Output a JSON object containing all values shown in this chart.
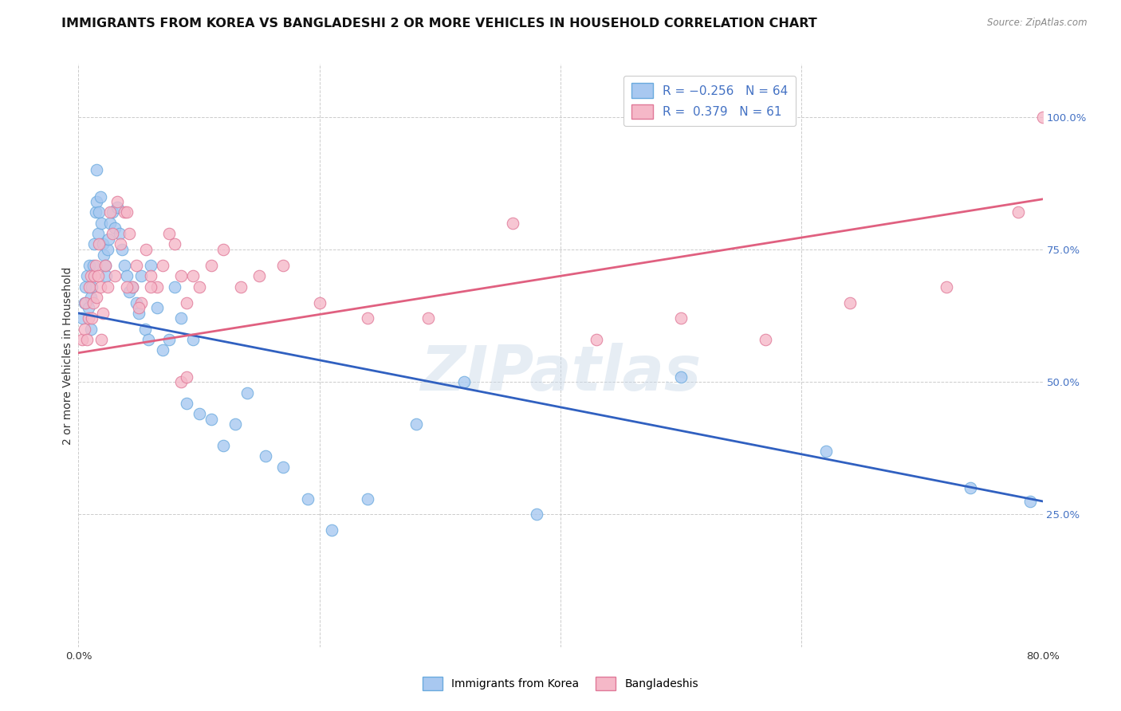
{
  "title": "IMMIGRANTS FROM KOREA VS BANGLADESHI 2 OR MORE VEHICLES IN HOUSEHOLD CORRELATION CHART",
  "source": "Source: ZipAtlas.com",
  "ylabel": "2 or more Vehicles in Household",
  "ytick_labels": [
    "25.0%",
    "50.0%",
    "75.0%",
    "100.0%"
  ],
  "ytick_values": [
    0.25,
    0.5,
    0.75,
    1.0
  ],
  "xlim": [
    0.0,
    0.8
  ],
  "ylim": [
    0.0,
    1.1
  ],
  "blue_line_y0": 0.63,
  "blue_line_y1": 0.275,
  "pink_line_y0": 0.555,
  "pink_line_y1": 0.845,
  "background_color": "#ffffff",
  "grid_color": "#cccccc",
  "title_fontsize": 11.5,
  "axis_label_fontsize": 10,
  "tick_fontsize": 9.5,
  "korea_color": "#a8c8f0",
  "korea_edge": "#6aaade",
  "bang_color": "#f5b8c8",
  "bang_edge": "#e07898",
  "blue_line_color": "#3060c0",
  "pink_line_color": "#e06080",
  "watermark": "ZIPatlas",
  "korea_x": [
    0.003,
    0.005,
    0.006,
    0.007,
    0.008,
    0.009,
    0.01,
    0.01,
    0.011,
    0.012,
    0.013,
    0.014,
    0.015,
    0.015,
    0.016,
    0.017,
    0.018,
    0.019,
    0.02,
    0.021,
    0.022,
    0.023,
    0.024,
    0.025,
    0.026,
    0.028,
    0.03,
    0.032,
    0.034,
    0.036,
    0.038,
    0.04,
    0.042,
    0.045,
    0.048,
    0.05,
    0.052,
    0.055,
    0.058,
    0.06,
    0.065,
    0.07,
    0.075,
    0.08,
    0.085,
    0.09,
    0.095,
    0.1,
    0.11,
    0.12,
    0.13,
    0.14,
    0.155,
    0.17,
    0.19,
    0.21,
    0.24,
    0.28,
    0.32,
    0.38,
    0.5,
    0.62,
    0.74,
    0.79
  ],
  "korea_y": [
    0.62,
    0.65,
    0.68,
    0.7,
    0.64,
    0.72,
    0.6,
    0.66,
    0.68,
    0.72,
    0.76,
    0.82,
    0.84,
    0.9,
    0.78,
    0.82,
    0.85,
    0.8,
    0.76,
    0.74,
    0.72,
    0.7,
    0.75,
    0.77,
    0.8,
    0.82,
    0.79,
    0.83,
    0.78,
    0.75,
    0.72,
    0.7,
    0.67,
    0.68,
    0.65,
    0.63,
    0.7,
    0.6,
    0.58,
    0.72,
    0.64,
    0.56,
    0.58,
    0.68,
    0.62,
    0.46,
    0.58,
    0.44,
    0.43,
    0.38,
    0.42,
    0.48,
    0.36,
    0.34,
    0.28,
    0.22,
    0.28,
    0.42,
    0.5,
    0.25,
    0.51,
    0.37,
    0.3,
    0.275
  ],
  "bang_x": [
    0.003,
    0.005,
    0.006,
    0.007,
    0.008,
    0.009,
    0.01,
    0.011,
    0.012,
    0.013,
    0.014,
    0.015,
    0.016,
    0.017,
    0.018,
    0.019,
    0.02,
    0.022,
    0.024,
    0.026,
    0.028,
    0.03,
    0.032,
    0.035,
    0.038,
    0.04,
    0.042,
    0.045,
    0.048,
    0.052,
    0.056,
    0.06,
    0.065,
    0.07,
    0.075,
    0.08,
    0.085,
    0.09,
    0.095,
    0.1,
    0.11,
    0.12,
    0.135,
    0.15,
    0.17,
    0.2,
    0.24,
    0.29,
    0.36,
    0.43,
    0.5,
    0.57,
    0.64,
    0.72,
    0.78,
    0.8,
    0.085,
    0.09,
    0.04,
    0.05,
    0.06
  ],
  "bang_y": [
    0.58,
    0.6,
    0.65,
    0.58,
    0.62,
    0.68,
    0.7,
    0.62,
    0.65,
    0.7,
    0.72,
    0.66,
    0.7,
    0.76,
    0.68,
    0.58,
    0.63,
    0.72,
    0.68,
    0.82,
    0.78,
    0.7,
    0.84,
    0.76,
    0.82,
    0.82,
    0.78,
    0.68,
    0.72,
    0.65,
    0.75,
    0.7,
    0.68,
    0.72,
    0.78,
    0.76,
    0.7,
    0.65,
    0.7,
    0.68,
    0.72,
    0.75,
    0.68,
    0.7,
    0.72,
    0.65,
    0.62,
    0.62,
    0.8,
    0.58,
    0.62,
    0.58,
    0.65,
    0.68,
    0.82,
    1.0,
    0.5,
    0.51,
    0.68,
    0.64,
    0.68
  ]
}
